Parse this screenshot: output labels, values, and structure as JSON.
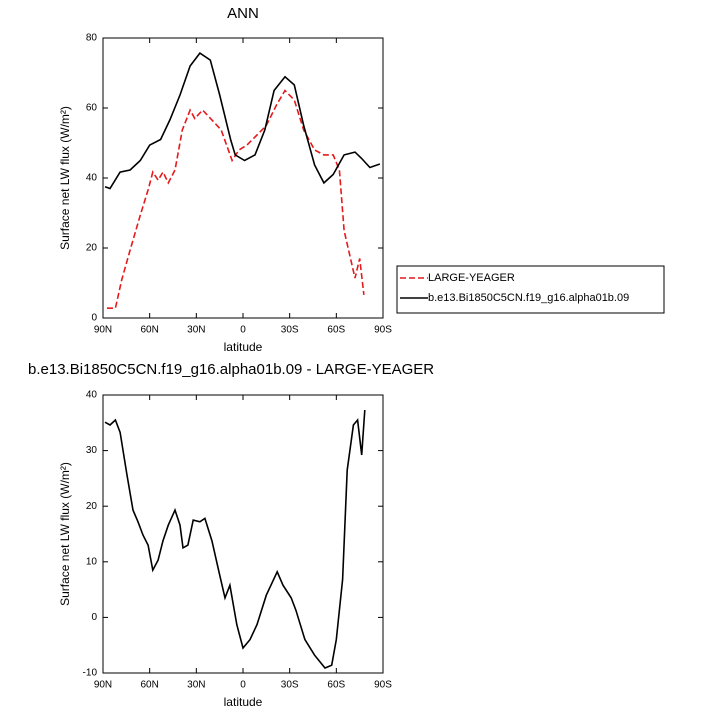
{
  "chart_data": [
    {
      "type": "line",
      "title": "ANN",
      "xlabel": "latitude",
      "ylabel": "Surface net LW flux (W/m²)",
      "xlim": [
        90,
        -90
      ],
      "ylim": [
        0,
        80
      ],
      "xticks": [
        {
          "value": 90,
          "label": "90N"
        },
        {
          "value": 60,
          "label": "60N"
        },
        {
          "value": 30,
          "label": "30N"
        },
        0,
        {
          "value": -30,
          "label": "30S"
        },
        {
          "value": -60,
          "label": "60S"
        },
        {
          "value": -90,
          "label": "90S"
        }
      ],
      "yticks": [
        0,
        20,
        40,
        60,
        80
      ],
      "legend": "right",
      "series": [
        {
          "name": "LARGE-YEAGER",
          "color": "#e41a1c",
          "dashed": true,
          "x": [
            87.4,
            82,
            78,
            72.6,
            66,
            61,
            58,
            54.6,
            51.4,
            48,
            43.7,
            39,
            34,
            31,
            26,
            20,
            14,
            7,
            2.6,
            -2.5,
            -9,
            -15,
            -21.6,
            -27,
            -33,
            -39,
            -46,
            -52,
            -58,
            -62,
            -65,
            -72,
            -75,
            -77.7
          ],
          "values": [
            2.8,
            2.8,
            10.9,
            19.4,
            29.4,
            36.6,
            41.7,
            39.4,
            41.7,
            38.6,
            42.3,
            53.7,
            59.4,
            57,
            59.4,
            56.6,
            53.7,
            45,
            48,
            49.4,
            52.3,
            55,
            60.9,
            65,
            62.3,
            53.7,
            48,
            46.6,
            46.6,
            42.3,
            25,
            11.4,
            17,
            6.6
          ]
        },
        {
          "name": "b.e13.Bi1850C5CN.f19_g16.alpha01b.09",
          "color": "#000000",
          "dashed": false,
          "x": [
            88.7,
            85.5,
            79,
            72.6,
            66,
            60,
            53,
            47,
            40.5,
            34,
            27.7,
            21,
            15,
            8,
            5,
            -1,
            -7.7,
            -14,
            -20,
            -27,
            -33,
            -39,
            -46,
            -52,
            -58,
            -65,
            -72,
            -76,
            -81.6,
            -88
          ],
          "values": [
            37.5,
            37,
            41.7,
            42.3,
            45,
            49.4,
            51,
            56.6,
            63.7,
            72,
            75.7,
            73.7,
            63.7,
            51,
            46.6,
            45,
            46.6,
            53.7,
            65,
            68.9,
            66.6,
            55,
            43.7,
            38.6,
            41,
            46.6,
            47.4,
            45.7,
            43,
            44
          ]
        }
      ]
    },
    {
      "type": "line",
      "title": "b.e13.Bi1850C5CN.f19_g16.alpha01b.09 - LARGE-YEAGER",
      "xlabel": "latitude",
      "ylabel": "Surface net LW flux (W/m²)",
      "xlim": [
        90,
        -90
      ],
      "ylim": [
        -10,
        40
      ],
      "xticks": [
        {
          "value": 90,
          "label": "90N"
        },
        {
          "value": 60,
          "label": "60N"
        },
        {
          "value": 30,
          "label": "30N"
        },
        0,
        {
          "value": -30,
          "label": "30S"
        },
        {
          "value": -60,
          "label": "60S"
        },
        {
          "value": -90,
          "label": "90S"
        }
      ],
      "yticks": [
        -10,
        0,
        10,
        20,
        30,
        40
      ],
      "color": "#000000",
      "x": [
        88.7,
        85.5,
        82,
        79,
        74.6,
        70.7,
        67.5,
        64.3,
        61,
        58,
        54.6,
        51.4,
        48,
        43.7,
        40.5,
        38.6,
        35.4,
        32,
        27.7,
        24.5,
        20,
        15,
        11.6,
        8.4,
        4,
        0,
        -4.5,
        -9,
        -15,
        -22,
        -25.7,
        -31,
        -34,
        -39.8,
        -46,
        -52.7,
        -57,
        -60,
        -64,
        -67,
        -71,
        -73.7,
        -76.3,
        -78.3
      ],
      "values": [
        35.1,
        34.6,
        35.5,
        33.3,
        25.6,
        19.3,
        17.2,
        14.8,
        13,
        8.5,
        10.3,
        13.8,
        16.6,
        19.3,
        16.6,
        12.5,
        13,
        17.5,
        17.2,
        17.8,
        13.8,
        7.6,
        3.5,
        5.8,
        -1.3,
        -5.5,
        -4,
        -1.3,
        4,
        8.2,
        5.8,
        3.5,
        1.3,
        -4,
        -6.8,
        -9.1,
        -8.6,
        -4,
        6.8,
        26.5,
        34.6,
        35.5,
        29.2,
        37.3
      ]
    }
  ]
}
